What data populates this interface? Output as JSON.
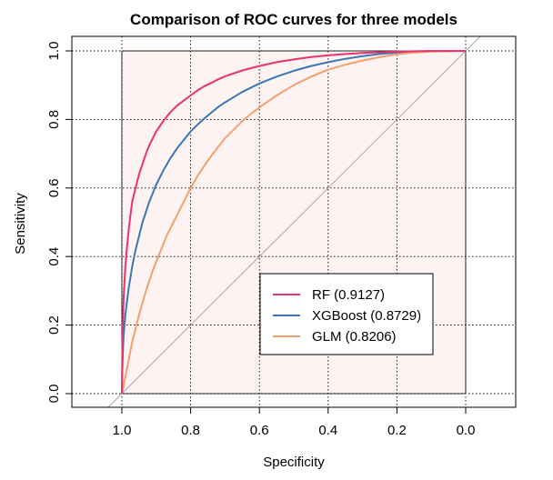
{
  "chart_data": {
    "type": "line",
    "title": "Comparison of ROC curves for three models",
    "xlabel": "Specificity",
    "ylabel": "Sensitivity",
    "xlim": [
      1.15,
      -0.15
    ],
    "ylim": [
      0.0,
      1.0
    ],
    "x_reversed": true,
    "x_ticks": [
      "1.0",
      "0.8",
      "0.6",
      "0.4",
      "0.2",
      "0.0"
    ],
    "y_ticks": [
      "0.0",
      "0.2",
      "0.4",
      "0.6",
      "0.8",
      "1.0"
    ],
    "grid": true,
    "reference_line": "diagonal",
    "shaded_area": true,
    "legend_position": "bottom-right",
    "series": [
      {
        "name": "RF (0.9127)",
        "color": "#e8336d",
        "specificity": [
          1.0,
          0.999,
          0.997,
          0.995,
          0.99,
          0.985,
          0.98,
          0.975,
          0.97,
          0.96,
          0.95,
          0.94,
          0.93,
          0.92,
          0.91,
          0.9,
          0.88,
          0.86,
          0.84,
          0.82,
          0.8,
          0.78,
          0.76,
          0.74,
          0.72,
          0.7,
          0.65,
          0.6,
          0.55,
          0.5,
          0.45,
          0.4,
          0.35,
          0.3,
          0.25,
          0.2,
          0.15,
          0.1,
          0.05,
          0.0
        ],
        "sensitivity": [
          0.0,
          0.1,
          0.2,
          0.28,
          0.37,
          0.43,
          0.48,
          0.52,
          0.56,
          0.6,
          0.64,
          0.67,
          0.7,
          0.725,
          0.745,
          0.765,
          0.795,
          0.82,
          0.84,
          0.855,
          0.87,
          0.885,
          0.897,
          0.907,
          0.917,
          0.926,
          0.943,
          0.956,
          0.967,
          0.975,
          0.982,
          0.987,
          0.991,
          0.994,
          0.996,
          0.998,
          0.999,
          1.0,
          1.0,
          1.0
        ]
      },
      {
        "name": "XGBoost (0.8729)",
        "color": "#3a78b5",
        "specificity": [
          1.0,
          0.999,
          0.997,
          0.995,
          0.99,
          0.98,
          0.97,
          0.96,
          0.95,
          0.94,
          0.92,
          0.9,
          0.88,
          0.86,
          0.84,
          0.82,
          0.8,
          0.78,
          0.76,
          0.74,
          0.72,
          0.7,
          0.65,
          0.6,
          0.55,
          0.5,
          0.45,
          0.4,
          0.35,
          0.3,
          0.25,
          0.2,
          0.15,
          0.1,
          0.05,
          0.0
        ],
        "sensitivity": [
          0.0,
          0.06,
          0.12,
          0.17,
          0.23,
          0.31,
          0.37,
          0.42,
          0.46,
          0.5,
          0.56,
          0.61,
          0.65,
          0.685,
          0.715,
          0.74,
          0.765,
          0.785,
          0.803,
          0.82,
          0.836,
          0.85,
          0.88,
          0.905,
          0.925,
          0.942,
          0.956,
          0.967,
          0.977,
          0.985,
          0.991,
          0.995,
          0.998,
          0.999,
          1.0,
          1.0
        ]
      },
      {
        "name": "GLM (0.8206)",
        "color": "#f4a06e",
        "specificity": [
          1.0,
          0.995,
          0.99,
          0.98,
          0.97,
          0.96,
          0.95,
          0.93,
          0.91,
          0.89,
          0.87,
          0.85,
          0.82,
          0.8,
          0.78,
          0.75,
          0.72,
          0.7,
          0.67,
          0.65,
          0.62,
          0.6,
          0.55,
          0.5,
          0.45,
          0.4,
          0.35,
          0.3,
          0.25,
          0.2,
          0.15,
          0.1,
          0.05,
          0.0
        ],
        "sensitivity": [
          0.0,
          0.02,
          0.05,
          0.1,
          0.15,
          0.19,
          0.23,
          0.3,
          0.36,
          0.41,
          0.46,
          0.5,
          0.56,
          0.6,
          0.635,
          0.68,
          0.72,
          0.745,
          0.775,
          0.795,
          0.82,
          0.835,
          0.87,
          0.9,
          0.925,
          0.945,
          0.96,
          0.972,
          0.982,
          0.99,
          0.995,
          0.998,
          0.999,
          1.0
        ]
      }
    ]
  }
}
